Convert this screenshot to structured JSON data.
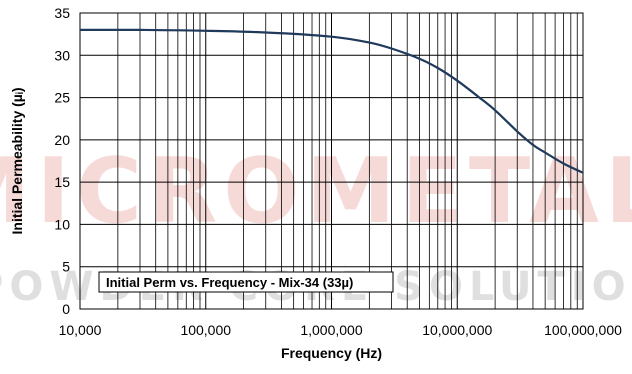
{
  "chart_data": {
    "type": "line",
    "title": "",
    "xlabel": "Frequency (Hz)",
    "ylabel": "Initial Permeability (µᵢ)",
    "xscale": "log",
    "xlim": [
      10000,
      100000000
    ],
    "ylim": [
      0,
      35
    ],
    "x_ticks": [
      10000,
      100000,
      1000000,
      10000000,
      100000000
    ],
    "x_tick_labels": [
      "10,000",
      "100,000",
      "1,000,000",
      "10,000,000",
      "100,000,000"
    ],
    "y_ticks": [
      0,
      5,
      10,
      15,
      20,
      25,
      30,
      35
    ],
    "y_tick_labels": [
      "0",
      "5",
      "10",
      "15",
      "20",
      "25",
      "30",
      "35"
    ],
    "grid": true,
    "series": [
      {
        "color": "#1f3a5a",
        "points": [
          [
            10000,
            33.0
          ],
          [
            30000,
            33.0
          ],
          [
            100000,
            32.9
          ],
          [
            300000,
            32.7
          ],
          [
            1000000,
            32.2
          ],
          [
            2000000,
            31.5
          ],
          [
            3000000,
            30.8
          ],
          [
            5000000,
            29.6
          ],
          [
            7000000,
            28.5
          ],
          [
            10000000,
            27.0
          ],
          [
            15000000,
            25.0
          ],
          [
            20000000,
            23.5
          ],
          [
            30000000,
            21.0
          ],
          [
            40000000,
            19.4
          ],
          [
            50000000,
            18.5
          ],
          [
            70000000,
            17.2
          ],
          [
            100000000,
            16.1
          ]
        ]
      }
    ],
    "annotation": "Initial Perm vs. Frequency - Mix-34  (33µ)"
  },
  "watermark": {
    "line1": "MICROMETALS",
    "line2": "POWDER CORE SOLUTIONS",
    "color": "#d23a2e"
  }
}
